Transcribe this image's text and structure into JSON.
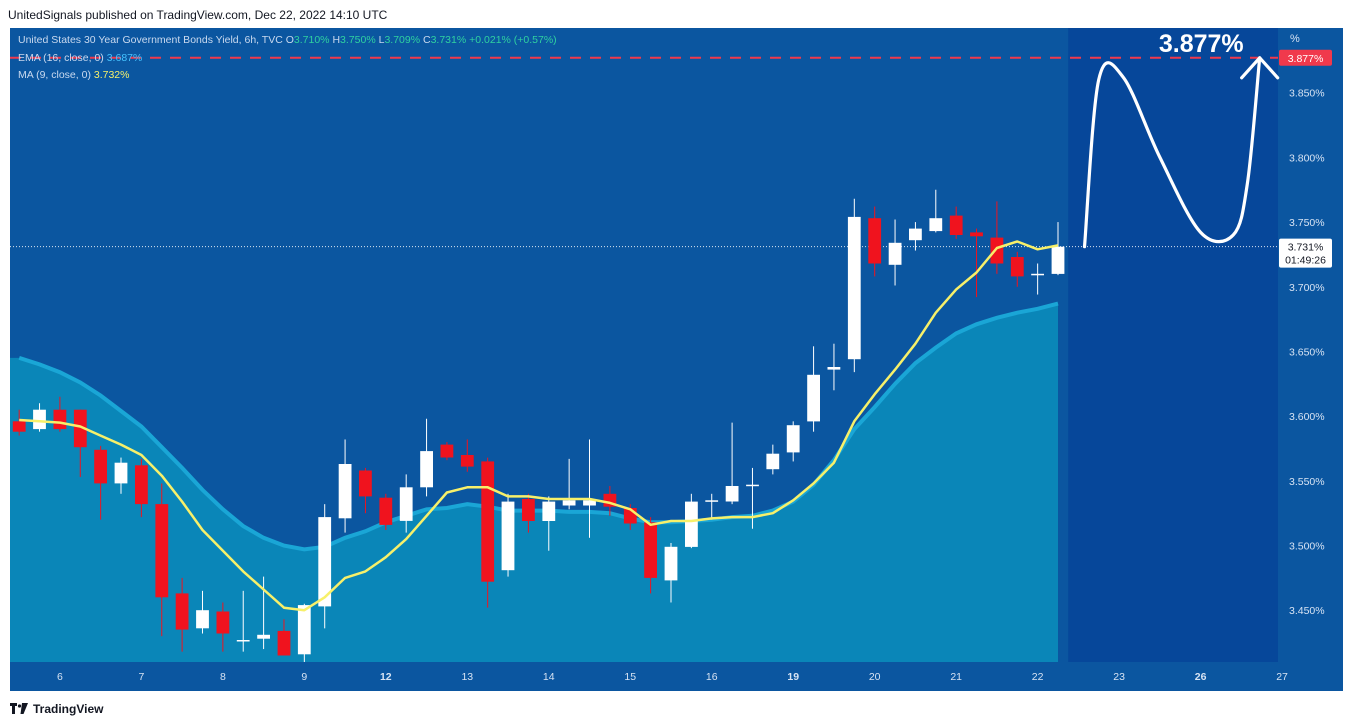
{
  "header": {
    "published": "UnitedSignals published on TradingView.com, Dec 22, 2022 14:10 UTC"
  },
  "legend": {
    "symbol": "United States 30 Year Government Bonds Yield, 6h, TVC",
    "o_label": "O",
    "o": "3.710%",
    "h_label": "H",
    "h": "3.750%",
    "l_label": "L",
    "l": "3.709%",
    "c_label": "C",
    "c": "3.731%",
    "change": "+0.021% (+0.57%)",
    "ema_label": "EMA (16, close, 0)",
    "ema_value": "3.687%",
    "ma_label": "MA (9, close, 0)",
    "ma_value": "3.732%"
  },
  "annotation": {
    "target_text": "3.877%",
    "target_label": "3.877%"
  },
  "current": {
    "price": "3.731%",
    "countdown": "01:49:26"
  },
  "footer": {
    "brand": "TradingView"
  },
  "colors": {
    "background": "#0b56a0",
    "area": "#0a86b8",
    "up": "#ffffff",
    "down": "#f0131e",
    "ma": "#f7f06a",
    "target": "#f0394c"
  },
  "chart_data": {
    "type": "candlestick",
    "unit": "%",
    "axis_unit": "%",
    "ylim": [
      3.41,
      3.9
    ],
    "yticks": [
      3.45,
      3.5,
      3.55,
      3.6,
      3.65,
      3.7,
      3.75,
      3.8,
      3.85
    ],
    "ytick_labels": [
      "3.450%",
      "3.500%",
      "3.550%",
      "3.600%",
      "3.650%",
      "3.700%",
      "3.750%",
      "3.800%",
      "3.850%"
    ],
    "xlim": [
      -0.45,
      61.8
    ],
    "xticks": [
      {
        "label": "6",
        "x": 2,
        "bold": false
      },
      {
        "label": "7",
        "x": 6,
        "bold": false
      },
      {
        "label": "8",
        "x": 10,
        "bold": false
      },
      {
        "label": "9",
        "x": 14,
        "bold": false
      },
      {
        "label": "12",
        "x": 18,
        "bold": true
      },
      {
        "label": "13",
        "x": 22,
        "bold": false
      },
      {
        "label": "14",
        "x": 26,
        "bold": false
      },
      {
        "label": "15",
        "x": 30,
        "bold": false
      },
      {
        "label": "16",
        "x": 34,
        "bold": false
      },
      {
        "label": "19",
        "x": 38,
        "bold": true
      },
      {
        "label": "20",
        "x": 42,
        "bold": false
      },
      {
        "label": "21",
        "x": 46,
        "bold": false
      },
      {
        "label": "22",
        "x": 50,
        "bold": false
      },
      {
        "label": "23",
        "x": 54,
        "bold": false
      },
      {
        "label": "26",
        "x": 58,
        "bold": true
      },
      {
        "label": "27",
        "x": 62,
        "bold": false
      }
    ],
    "candles": [
      {
        "o": 3.596,
        "h": 3.605,
        "l": 3.585,
        "c": 3.588
      },
      {
        "o": 3.59,
        "h": 3.61,
        "l": 3.588,
        "c": 3.605
      },
      {
        "o": 3.605,
        "h": 3.615,
        "l": 3.588,
        "c": 3.59
      },
      {
        "o": 3.605,
        "h": 3.605,
        "l": 3.553,
        "c": 3.576
      },
      {
        "o": 3.574,
        "h": 3.577,
        "l": 3.52,
        "c": 3.548
      },
      {
        "o": 3.548,
        "h": 3.568,
        "l": 3.54,
        "c": 3.564
      },
      {
        "o": 3.562,
        "h": 3.567,
        "l": 3.522,
        "c": 3.532
      },
      {
        "o": 3.532,
        "h": 3.548,
        "l": 3.43,
        "c": 3.46
      },
      {
        "o": 3.463,
        "h": 3.475,
        "l": 3.418,
        "c": 3.435
      },
      {
        "o": 3.436,
        "h": 3.465,
        "l": 3.432,
        "c": 3.45
      },
      {
        "o": 3.449,
        "h": 3.456,
        "l": 3.418,
        "c": 3.432
      },
      {
        "o": 3.426,
        "h": 3.465,
        "l": 3.418,
        "c": 3.427
      },
      {
        "o": 3.428,
        "h": 3.476,
        "l": 3.42,
        "c": 3.431
      },
      {
        "o": 3.434,
        "h": 3.443,
        "l": 3.418,
        "c": 3.415
      },
      {
        "o": 3.416,
        "h": 3.455,
        "l": 3.41,
        "c": 3.454
      },
      {
        "o": 3.453,
        "h": 3.532,
        "l": 3.436,
        "c": 3.522
      },
      {
        "o": 3.521,
        "h": 3.582,
        "l": 3.51,
        "c": 3.563
      },
      {
        "o": 3.558,
        "h": 3.56,
        "l": 3.525,
        "c": 3.538
      },
      {
        "o": 3.537,
        "h": 3.54,
        "l": 3.512,
        "c": 3.516
      },
      {
        "o": 3.519,
        "h": 3.555,
        "l": 3.51,
        "c": 3.545
      },
      {
        "o": 3.545,
        "h": 3.598,
        "l": 3.538,
        "c": 3.573
      },
      {
        "o": 3.578,
        "h": 3.58,
        "l": 3.566,
        "c": 3.568
      },
      {
        "o": 3.57,
        "h": 3.582,
        "l": 3.557,
        "c": 3.561
      },
      {
        "o": 3.565,
        "h": 3.568,
        "l": 3.452,
        "c": 3.472
      },
      {
        "o": 3.481,
        "h": 3.54,
        "l": 3.476,
        "c": 3.534
      },
      {
        "o": 3.536,
        "h": 3.54,
        "l": 3.51,
        "c": 3.519
      },
      {
        "o": 3.519,
        "h": 3.538,
        "l": 3.496,
        "c": 3.534
      },
      {
        "o": 3.531,
        "h": 3.567,
        "l": 3.528,
        "c": 3.535
      },
      {
        "o": 3.531,
        "h": 3.582,
        "l": 3.506,
        "c": 3.535
      },
      {
        "o": 3.54,
        "h": 3.546,
        "l": 3.523,
        "c": 3.53
      },
      {
        "o": 3.529,
        "h": 3.532,
        "l": 3.512,
        "c": 3.517
      },
      {
        "o": 3.518,
        "h": 3.522,
        "l": 3.463,
        "c": 3.475
      },
      {
        "o": 3.473,
        "h": 3.502,
        "l": 3.456,
        "c": 3.499
      },
      {
        "o": 3.499,
        "h": 3.54,
        "l": 3.498,
        "c": 3.534
      },
      {
        "o": 3.535,
        "h": 3.54,
        "l": 3.52,
        "c": 3.535
      },
      {
        "o": 3.534,
        "h": 3.595,
        "l": 3.532,
        "c": 3.546
      },
      {
        "o": 3.547,
        "h": 3.56,
        "l": 3.513,
        "c": 3.547
      },
      {
        "o": 3.559,
        "h": 3.578,
        "l": 3.555,
        "c": 3.571
      },
      {
        "o": 3.572,
        "h": 3.596,
        "l": 3.565,
        "c": 3.593
      },
      {
        "o": 3.596,
        "h": 3.654,
        "l": 3.588,
        "c": 3.632
      },
      {
        "o": 3.636,
        "h": 3.656,
        "l": 3.62,
        "c": 3.638
      },
      {
        "o": 3.644,
        "h": 3.768,
        "l": 3.634,
        "c": 3.754
      },
      {
        "o": 3.753,
        "h": 3.762,
        "l": 3.708,
        "c": 3.718
      },
      {
        "o": 3.717,
        "h": 3.752,
        "l": 3.701,
        "c": 3.734
      },
      {
        "o": 3.736,
        "h": 3.75,
        "l": 3.728,
        "c": 3.745
      },
      {
        "o": 3.743,
        "h": 3.775,
        "l": 3.742,
        "c": 3.753
      },
      {
        "o": 3.755,
        "h": 3.762,
        "l": 3.737,
        "c": 3.74
      },
      {
        "o": 3.742,
        "h": 3.745,
        "l": 3.692,
        "c": 3.739
      },
      {
        "o": 3.738,
        "h": 3.766,
        "l": 3.71,
        "c": 3.718
      },
      {
        "o": 3.723,
        "h": 3.727,
        "l": 3.7,
        "c": 3.708
      },
      {
        "o": 3.71,
        "h": 3.718,
        "l": 3.694,
        "c": 3.71
      },
      {
        "o": 3.71,
        "h": 3.75,
        "l": 3.709,
        "c": 3.731
      }
    ],
    "ma": [
      3.597,
      3.596,
      3.595,
      3.592,
      3.585,
      3.578,
      3.57,
      3.554,
      3.534,
      3.512,
      3.496,
      3.48,
      3.466,
      3.452,
      3.45,
      3.46,
      3.475,
      3.48,
      3.491,
      3.505,
      3.523,
      3.541,
      3.545,
      3.545,
      3.538,
      3.538,
      3.536,
      3.536,
      3.536,
      3.533,
      3.528,
      3.516,
      3.519,
      3.519,
      3.521,
      3.522,
      3.522,
      3.525,
      3.535,
      3.548,
      3.564,
      3.596,
      3.617,
      3.636,
      3.656,
      3.68,
      3.698,
      3.711,
      3.73,
      3.735,
      3.729,
      3.732
    ],
    "ema": [
      3.645,
      3.64,
      3.634,
      3.626,
      3.616,
      3.604,
      3.592,
      3.576,
      3.56,
      3.543,
      3.528,
      3.515,
      3.506,
      3.5,
      3.497,
      3.499,
      3.506,
      3.511,
      3.518,
      3.523,
      3.528,
      3.529,
      3.532,
      3.53,
      3.527,
      3.527,
      3.527,
      3.526,
      3.526,
      3.525,
      3.521,
      3.518,
      3.518,
      3.519,
      3.52,
      3.522,
      3.523,
      3.527,
      3.534,
      3.547,
      3.566,
      3.59,
      3.607,
      3.625,
      3.641,
      3.653,
      3.664,
      3.671,
      3.676,
      3.68,
      3.683,
      3.687
    ],
    "projection": [
      [
        52.3,
        3.731
      ],
      [
        53.0,
        3.86
      ],
      [
        54.2,
        3.862
      ],
      [
        56.0,
        3.8
      ],
      [
        58.0,
        3.742
      ],
      [
        59.6,
        3.74
      ],
      [
        60.3,
        3.78
      ],
      [
        60.9,
        3.877
      ]
    ],
    "target_price": 3.877,
    "last_price": 3.731
  }
}
